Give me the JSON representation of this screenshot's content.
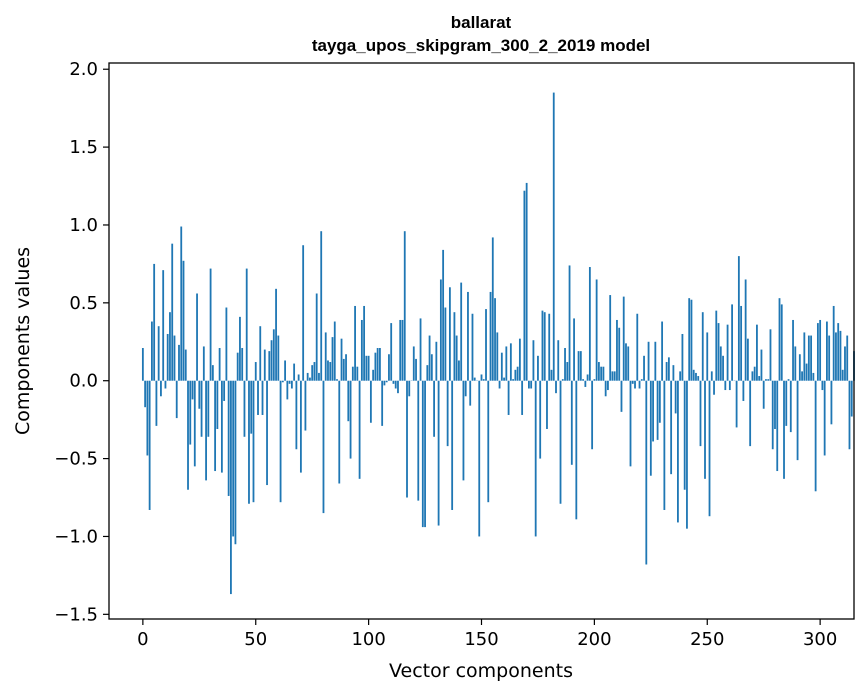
{
  "chart_data": {
    "type": "bar",
    "title": "ballarat",
    "subtitle": "tayga_upos_skipgram_300_2_2019 model",
    "xlabel": "Vector components",
    "ylabel": "Components values",
    "xlim": [
      -15,
      315
    ],
    "ylim": [
      -1.53,
      2.04
    ],
    "xticks": [
      0,
      50,
      100,
      150,
      200,
      250,
      300
    ],
    "xtick_labels": [
      "0",
      "50",
      "100",
      "150",
      "200",
      "250",
      "300"
    ],
    "yticks": [
      -1.5,
      -1.0,
      -0.5,
      0.0,
      0.5,
      1.0,
      1.5,
      2.0
    ],
    "ytick_labels": [
      "−1.5",
      "−1.0",
      "−0.5",
      "0.0",
      "0.5",
      "1.0",
      "1.5",
      "2.0"
    ],
    "bar_color": "#1f77b4",
    "grid": false,
    "series": [
      {
        "name": "components",
        "values": [
          0.21,
          -0.17,
          -0.48,
          -0.83,
          0.38,
          0.75,
          -0.29,
          0.35,
          -0.1,
          0.71,
          -0.05,
          0.3,
          0.44,
          0.88,
          0.29,
          -0.24,
          0.23,
          0.99,
          0.77,
          0.2,
          -0.7,
          -0.41,
          -0.12,
          -0.55,
          0.56,
          -0.18,
          -0.36,
          0.22,
          -0.64,
          -0.36,
          0.72,
          0.1,
          -0.58,
          -0.31,
          0.21,
          -0.59,
          -0.13,
          0.47,
          -0.74,
          -1.37,
          -1.0,
          -1.05,
          0.18,
          0.41,
          0.21,
          -0.36,
          0.72,
          -0.79,
          -0.34,
          -0.78,
          0.12,
          -0.22,
          0.35,
          -0.22,
          0.2,
          -0.67,
          0.19,
          0.26,
          0.33,
          0.59,
          0.29,
          -0.78,
          -0.01,
          0.13,
          -0.12,
          -0.02,
          -0.05,
          0.11,
          -0.44,
          0.04,
          -0.59,
          0.87,
          -0.32,
          0.05,
          0.02,
          0.1,
          0.12,
          0.56,
          0.05,
          0.96,
          -0.85,
          0.31,
          0.13,
          0.12,
          0.28,
          0.38,
          0.01,
          -0.66,
          0.27,
          0.14,
          0.17,
          -0.26,
          -0.5,
          0.09,
          0.48,
          0.09,
          -0.63,
          0.39,
          0.48,
          0.16,
          0.16,
          -0.27,
          0.07,
          0.18,
          0.21,
          0.21,
          -0.29,
          -0.03,
          -0.01,
          0.17,
          0.37,
          -0.02,
          -0.05,
          -0.08,
          0.39,
          0.39,
          0.96,
          -0.75,
          -0.1,
          0.0,
          0.22,
          0.14,
          -0.77,
          0.4,
          -0.94,
          -0.94,
          0.1,
          0.29,
          0.17,
          -0.36,
          0.25,
          -0.93,
          0.65,
          0.84,
          0.47,
          -0.42,
          0.6,
          -0.83,
          0.44,
          0.29,
          0.13,
          0.63,
          -0.64,
          -0.1,
          0.57,
          -0.16,
          0.43,
          0.02,
          0.0,
          -1.0,
          0.04,
          0.01,
          0.46,
          -0.78,
          0.57,
          0.92,
          0.53,
          0.31,
          -0.05,
          0.18,
          0.02,
          0.22,
          -0.22,
          0.24,
          0.01,
          0.07,
          0.09,
          0.27,
          -0.22,
          1.22,
          1.27,
          -0.05,
          -0.05,
          0.26,
          -1.0,
          0.16,
          -0.5,
          0.45,
          0.44,
          -0.31,
          0.43,
          0.07,
          1.85,
          -0.08,
          0.26,
          -0.79,
          0.01,
          0.21,
          0.12,
          0.74,
          -0.54,
          0.4,
          -0.89,
          0.19,
          0.19,
          0.01,
          -0.04,
          0.04,
          0.73,
          -0.44,
          0.01,
          0.65,
          0.12,
          0.09,
          0.09,
          -0.1,
          -0.06,
          0.55,
          0.06,
          0.06,
          0.39,
          0.34,
          -0.2,
          0.54,
          0.24,
          0.22,
          -0.55,
          -0.02,
          -0.05,
          0.43,
          -0.05,
          0.01,
          0.16,
          -1.18,
          0.25,
          -0.61,
          -0.39,
          0.25,
          -0.38,
          -0.27,
          0.38,
          -0.83,
          0.12,
          0.15,
          -0.6,
          0.1,
          -0.21,
          -0.91,
          0.06,
          0.3,
          -0.7,
          -0.95,
          0.53,
          0.52,
          0.07,
          0.05,
          0.03,
          -0.42,
          0.44,
          -0.63,
          0.31,
          -0.87,
          0.06,
          -0.09,
          0.45,
          0.37,
          0.22,
          0.16,
          -0.06,
          0.36,
          -0.06,
          0.49,
          0.0,
          -0.3,
          0.8,
          0.48,
          -0.13,
          0.65,
          0.27,
          -0.42,
          0.06,
          0.09,
          0.36,
          0.03,
          0.2,
          -0.18,
          0.01,
          0.01,
          0.33,
          -0.44,
          -0.31,
          -0.58,
          0.53,
          0.49,
          -0.63,
          -0.29,
          0.01,
          -0.33,
          0.39,
          0.22,
          -0.51,
          0.17,
          0.06,
          0.31,
          0.11,
          0.29,
          0.29,
          0.05,
          -0.71,
          0.37,
          0.39,
          -0.06,
          -0.48,
          0.38,
          0.29,
          -0.28,
          0.48,
          0.31,
          0.37,
          0.32,
          0.07,
          0.22,
          0.29,
          -0.44,
          -0.23,
          0.19
        ]
      }
    ]
  }
}
